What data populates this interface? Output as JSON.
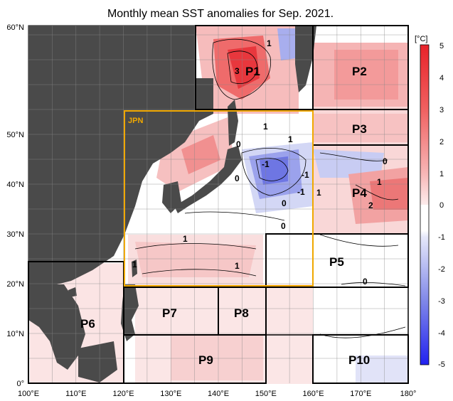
{
  "title": "Monthly mean SST anomalies for Sep. 2021.",
  "lon_labels": [
    "100°E",
    "110°E",
    "120°E",
    "130°E",
    "140°E",
    "150°E",
    "160°E",
    "170°E",
    "180°"
  ],
  "lat_labels": [
    "0°",
    "10°N",
    "20°N",
    "30°N",
    "40°N",
    "50°N",
    "60°N"
  ],
  "colorbar": {
    "unit": "[°C]",
    "ticks": [
      "5",
      "4",
      "3",
      "2",
      "1",
      "0",
      "-1",
      "-2",
      "-3",
      "-4",
      "-5"
    ]
  },
  "regions": {
    "jpn": "JPN",
    "p1": "P1",
    "p2": "P2",
    "p3": "P3",
    "p4": "P4",
    "p5": "P5",
    "p6": "P6",
    "p7": "P7",
    "p8": "P8",
    "p9": "P9",
    "p10": "P10"
  },
  "contour_labels": [
    "3",
    "1",
    "1",
    "1",
    "0",
    "-1",
    "-1",
    "-1",
    "0",
    "1",
    "1",
    "2",
    "0",
    "0",
    "1",
    "1",
    "1",
    "0",
    "0"
  ],
  "colors": {
    "land": "#4a4a4a",
    "ocean": "#ffffff",
    "warm_strong": "#e8232a",
    "warm_light": "#f7c9c9",
    "cool": "#5a62e0",
    "jpn_box": "#f0a800"
  }
}
